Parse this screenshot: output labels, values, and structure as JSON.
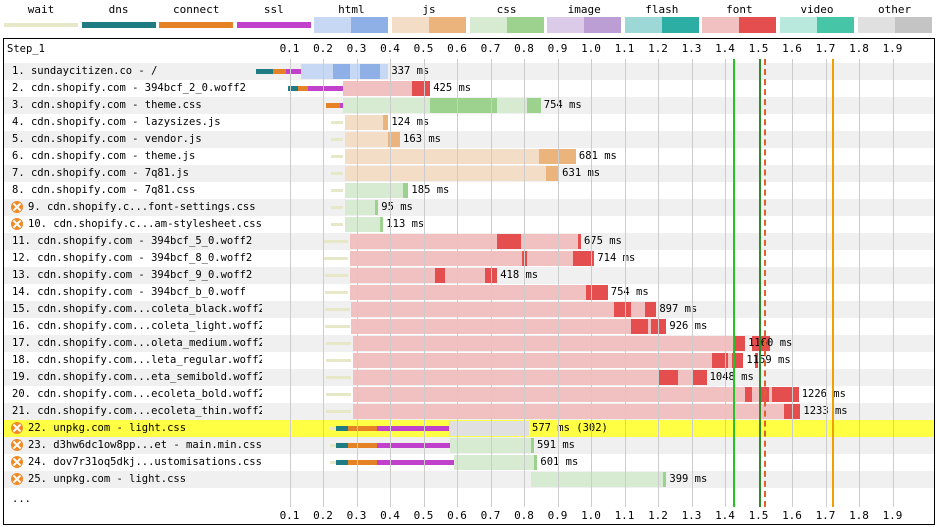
{
  "legend": [
    {
      "label": "wait",
      "light": "#ffffff",
      "dark": "#e6e8c8",
      "split": false
    },
    {
      "label": "dns",
      "light": "#1f7c83",
      "dark": "#1f7c83",
      "split": false
    },
    {
      "label": "connect",
      "light": "#e58226",
      "dark": "#e58226",
      "split": false
    },
    {
      "label": "ssl",
      "light": "#c141cd",
      "dark": "#c141cd",
      "split": false
    },
    {
      "label": "html",
      "light": "#c6d8f3",
      "dark": "#8eb0e6",
      "split": true
    },
    {
      "label": "js",
      "light": "#f3ddc6",
      "dark": "#ebb47d",
      "split": true
    },
    {
      "label": "css",
      "light": "#d7ebd3",
      "dark": "#9dd28e",
      "split": true
    },
    {
      "label": "image",
      "light": "#dbcbe8",
      "dark": "#bc9ed4",
      "split": true
    },
    {
      "label": "flash",
      "light": "#9ed8d6",
      "dark": "#2daea5",
      "split": true
    },
    {
      "label": "font",
      "light": "#f1c1c1",
      "dark": "#e54e4e",
      "split": true
    },
    {
      "label": "video",
      "light": "#b9e8dc",
      "dark": "#47c5a7",
      "split": true
    },
    {
      "label": "other",
      "light": "#e0e0e0",
      "dark": "#c4c4c4",
      "split": true
    }
  ],
  "step_title": "Step_1",
  "timeline": {
    "max": 1.95,
    "ticks": [
      "0.1",
      "0.2",
      "0.3",
      "0.4",
      "0.5",
      "0.6",
      "0.7",
      "0.8",
      "0.9",
      "1.0",
      "1.1",
      "1.2",
      "1.3",
      "1.4",
      "1.5",
      "1.6",
      "1.7",
      "1.8",
      "1.9"
    ]
  },
  "events": [
    {
      "name": "start_render",
      "time": 1.425,
      "color": "#28c228"
    },
    {
      "name": "dom_content_loaded",
      "time": 1.5,
      "color": "#2e8b2e"
    },
    {
      "name": "dom_interactive",
      "time": 1.515,
      "color": "#e0622a"
    },
    {
      "name": "on_load",
      "time": 1.72,
      "color": "#f0a000"
    }
  ],
  "requests": [
    {
      "label": "1. sundaycitizen.co - /",
      "warn": false,
      "hl": false,
      "type": "html",
      "wait": [
        0,
        0
      ],
      "dns": [
        0,
        0.05
      ],
      "connect": [
        0.05,
        0.09
      ],
      "ssl": [
        0.09,
        0.135
      ],
      "start": 0.135,
      "end": 0.395,
      "darks": [
        [
          0.23,
          0.28
        ],
        [
          0.31,
          0.37
        ]
      ],
      "duration": "337 ms"
    },
    {
      "label": "2. cdn.shopify.com - 394bcf_2_0.woff2",
      "warn": false,
      "hl": false,
      "type": "font",
      "wait": [
        0,
        0
      ],
      "dns": [
        0.095,
        0.125
      ],
      "connect": [
        0.125,
        0.155
      ],
      "ssl": [
        0.155,
        0.26
      ],
      "start": 0.26,
      "end": 0.52,
      "darks": [
        [
          0.465,
          0.52
        ]
      ],
      "duration": "425 ms"
    },
    {
      "label": "3. cdn.shopify.com - theme.css",
      "warn": false,
      "hl": false,
      "type": "css",
      "wait": [
        0,
        0
      ],
      "dns": [
        0,
        0
      ],
      "connect": [
        0.21,
        0.25
      ],
      "ssl": [
        0.25,
        0.26
      ],
      "start": 0.26,
      "end": 0.85,
      "darks": [
        [
          0.52,
          0.72
        ],
        [
          0.81,
          0.85
        ]
      ],
      "duration": "754 ms"
    },
    {
      "label": "4. cdn.shopify.com - lazysizes.js",
      "warn": false,
      "hl": false,
      "type": "js",
      "wait": [
        0.225,
        0.26
      ],
      "dns": [
        0,
        0
      ],
      "connect": [
        0,
        0
      ],
      "ssl": [
        0,
        0
      ],
      "start": 0.265,
      "end": 0.395,
      "darks": [
        [
          0.38,
          0.395
        ]
      ],
      "duration": "124 ms"
    },
    {
      "label": "5. cdn.shopify.com - vendor.js",
      "warn": false,
      "hl": false,
      "type": "js",
      "wait": [
        0.225,
        0.26
      ],
      "dns": [
        0,
        0
      ],
      "connect": [
        0,
        0
      ],
      "ssl": [
        0,
        0
      ],
      "start": 0.265,
      "end": 0.43,
      "darks": [
        [
          0.395,
          0.43
        ]
      ],
      "duration": "163 ms"
    },
    {
      "label": "6. cdn.shopify.com - theme.js",
      "warn": false,
      "hl": false,
      "type": "js",
      "wait": [
        0.225,
        0.26
      ],
      "dns": [
        0,
        0
      ],
      "connect": [
        0,
        0
      ],
      "ssl": [
        0,
        0
      ],
      "start": 0.265,
      "end": 0.955,
      "darks": [
        [
          0.845,
          0.955
        ]
      ],
      "duration": "681 ms"
    },
    {
      "label": "7. cdn.shopify.com - 7q81.js",
      "warn": false,
      "hl": false,
      "type": "js",
      "wait": [
        0.225,
        0.26
      ],
      "dns": [
        0,
        0
      ],
      "connect": [
        0,
        0
      ],
      "ssl": [
        0,
        0
      ],
      "start": 0.265,
      "end": 0.905,
      "darks": [
        [
          0.865,
          0.905
        ]
      ],
      "duration": "631 ms"
    },
    {
      "label": "8. cdn.shopify.com - 7q81.css",
      "warn": false,
      "hl": false,
      "type": "css",
      "wait": [
        0.225,
        0.26
      ],
      "dns": [
        0,
        0
      ],
      "connect": [
        0,
        0
      ],
      "ssl": [
        0,
        0
      ],
      "start": 0.265,
      "end": 0.455,
      "darks": [
        [
          0.44,
          0.455
        ]
      ],
      "duration": "185 ms"
    },
    {
      "label": "9. cdn.shopify.c...font-settings.css",
      "warn": true,
      "hl": false,
      "type": "css",
      "wait": [
        0.225,
        0.26
      ],
      "dns": [
        0,
        0
      ],
      "connect": [
        0,
        0
      ],
      "ssl": [
        0,
        0
      ],
      "start": 0.265,
      "end": 0.365,
      "darks": [
        [
          0.355,
          0.365
        ]
      ],
      "duration": "95 ms"
    },
    {
      "label": "10. cdn.shopify.c...am-stylesheet.css",
      "warn": true,
      "hl": false,
      "type": "css",
      "wait": [
        0.225,
        0.26
      ],
      "dns": [
        0,
        0
      ],
      "connect": [
        0,
        0
      ],
      "ssl": [
        0,
        0
      ],
      "start": 0.265,
      "end": 0.38,
      "darks": [
        [
          0.37,
          0.38
        ]
      ],
      "duration": "113 ms"
    },
    {
      "label": "11. cdn.shopify.com - 394bcf_5_0.woff2",
      "warn": false,
      "hl": false,
      "type": "font",
      "wait": [
        0.2,
        0.275
      ],
      "dns": [
        0,
        0
      ],
      "connect": [
        0,
        0
      ],
      "ssl": [
        0,
        0
      ],
      "start": 0.28,
      "end": 0.97,
      "darks": [
        [
          0.72,
          0.79
        ],
        [
          0.96,
          0.97
        ]
      ],
      "duration": "675 ms"
    },
    {
      "label": "12. cdn.shopify.com - 394bcf_8_0.woff2",
      "warn": false,
      "hl": false,
      "type": "font",
      "wait": [
        0.2,
        0.275
      ],
      "dns": [
        0,
        0
      ],
      "connect": [
        0,
        0
      ],
      "ssl": [
        0,
        0
      ],
      "start": 0.28,
      "end": 1.01,
      "darks": [
        [
          0.795,
          0.81
        ],
        [
          0.945,
          1.01
        ]
      ],
      "duration": "714 ms"
    },
    {
      "label": "13. cdn.shopify.com - 394bcf_9_0.woff2",
      "warn": false,
      "hl": false,
      "type": "font",
      "wait": [
        0.205,
        0.275
      ],
      "dns": [
        0,
        0
      ],
      "connect": [
        0,
        0
      ],
      "ssl": [
        0,
        0
      ],
      "start": 0.28,
      "end": 0.72,
      "darks": [
        [
          0.535,
          0.565
        ],
        [
          0.685,
          0.72
        ]
      ],
      "duration": "418 ms"
    },
    {
      "label": "14. cdn.shopify.com - 394bcf_b_0.woff",
      "warn": false,
      "hl": false,
      "type": "font",
      "wait": [
        0.205,
        0.275
      ],
      "dns": [
        0,
        0
      ],
      "connect": [
        0,
        0
      ],
      "ssl": [
        0,
        0
      ],
      "start": 0.28,
      "end": 1.05,
      "darks": [
        [
          0.985,
          1.05
        ]
      ],
      "duration": "754 ms"
    },
    {
      "label": "15. cdn.shopify.com...coleta_black.woff2",
      "warn": false,
      "hl": false,
      "type": "font",
      "wait": [
        0.205,
        0.28
      ],
      "dns": [
        0,
        0
      ],
      "connect": [
        0,
        0
      ],
      "ssl": [
        0,
        0
      ],
      "start": 0.285,
      "end": 1.195,
      "darks": [
        [
          1.07,
          1.12
        ],
        [
          1.16,
          1.195
        ]
      ],
      "duration": "897 ms"
    },
    {
      "label": "16. cdn.shopify.com...coleta_light.woff2",
      "warn": false,
      "hl": false,
      "type": "font",
      "wait": [
        0.205,
        0.28
      ],
      "dns": [
        0,
        0
      ],
      "connect": [
        0,
        0
      ],
      "ssl": [
        0,
        0
      ],
      "start": 0.285,
      "end": 1.225,
      "darks": [
        [
          1.12,
          1.17
        ],
        [
          1.18,
          1.225
        ]
      ],
      "duration": "926 ms"
    },
    {
      "label": "17. cdn.shopify.com...oleta_medium.woff2",
      "warn": false,
      "hl": false,
      "type": "font",
      "wait": [
        0.21,
        0.285
      ],
      "dns": [
        0,
        0
      ],
      "connect": [
        0,
        0
      ],
      "ssl": [
        0,
        0
      ],
      "start": 0.29,
      "end": 1.46,
      "darks": [
        [
          1.43,
          1.46
        ],
        [
          1.48,
          1.52
        ],
        [
          1.52,
          1.535
        ]
      ],
      "duration": "1160 ms"
    },
    {
      "label": "18. cdn.shopify.com...leta_regular.woff2",
      "warn": false,
      "hl": false,
      "type": "font",
      "wait": [
        0.21,
        0.285
      ],
      "dns": [
        0,
        0
      ],
      "connect": [
        0,
        0
      ],
      "ssl": [
        0,
        0
      ],
      "start": 0.29,
      "end": 1.455,
      "darks": [
        [
          1.36,
          1.41
        ],
        [
          1.42,
          1.455
        ],
        [
          1.49,
          1.5
        ]
      ],
      "duration": "1159 ms"
    },
    {
      "label": "19. cdn.shopify.com...eta_semibold.woff2",
      "warn": false,
      "hl": false,
      "type": "font",
      "wait": [
        0.21,
        0.285
      ],
      "dns": [
        0,
        0
      ],
      "connect": [
        0,
        0
      ],
      "ssl": [
        0,
        0
      ],
      "start": 0.29,
      "end": 1.345,
      "darks": [
        [
          1.2,
          1.26
        ],
        [
          1.3,
          1.345
        ]
      ],
      "duration": "1048 ms"
    },
    {
      "label": "20. cdn.shopify.com...ecoleta_bold.woff2",
      "warn": false,
      "hl": false,
      "type": "font",
      "wait": [
        0.21,
        0.285
      ],
      "dns": [
        0,
        0
      ],
      "connect": [
        0,
        0
      ],
      "ssl": [
        0,
        0
      ],
      "start": 0.29,
      "end": 1.62,
      "darks": [
        [
          1.46,
          1.48
        ],
        [
          1.5,
          1.53
        ],
        [
          1.54,
          1.62
        ]
      ],
      "duration": "1226 ms"
    },
    {
      "label": "21. cdn.shopify.com...ecoleta_thin.woff2",
      "warn": false,
      "hl": false,
      "type": "font",
      "wait": [
        0.21,
        0.285
      ],
      "dns": [
        0,
        0
      ],
      "connect": [
        0,
        0
      ],
      "ssl": [
        0,
        0
      ],
      "start": 0.29,
      "end": 1.625,
      "darks": [
        [
          1.575,
          1.625
        ]
      ],
      "duration": "1233 ms"
    },
    {
      "label": "22. unpkg.com - light.css",
      "warn": true,
      "hl": true,
      "type": "other",
      "wait": [
        0.22,
        0.24
      ],
      "dns": [
        0.24,
        0.275
      ],
      "connect": [
        0.275,
        0.36
      ],
      "ssl": [
        0.36,
        0.575
      ],
      "start": 0.575,
      "end": 0.815,
      "darks": [],
      "duration": "577 ms (302)"
    },
    {
      "label": "23. d3hw6dc1ow8pp...et - main.min.css",
      "warn": true,
      "hl": false,
      "type": "css",
      "wait": [
        0.22,
        0.24
      ],
      "dns": [
        0.24,
        0.275
      ],
      "connect": [
        0.275,
        0.36
      ],
      "ssl": [
        0.36,
        0.58
      ],
      "start": 0.58,
      "end": 0.83,
      "darks": [
        [
          0.82,
          0.83
        ]
      ],
      "duration": "591 ms"
    },
    {
      "label": "24. dov7r31oq5dkj...ustomisations.css",
      "warn": true,
      "hl": false,
      "type": "css",
      "wait": [
        0.22,
        0.24
      ],
      "dns": [
        0.24,
        0.275
      ],
      "connect": [
        0.275,
        0.36
      ],
      "ssl": [
        0.36,
        0.59
      ],
      "start": 0.59,
      "end": 0.84,
      "darks": [
        [
          0.83,
          0.84
        ]
      ],
      "duration": "601 ms"
    },
    {
      "label": "25. unpkg.com - light.css",
      "warn": true,
      "hl": false,
      "type": "css",
      "wait": [
        0,
        0
      ],
      "dns": [
        0,
        0
      ],
      "connect": [
        0,
        0
      ],
      "ssl": [
        0,
        0
      ],
      "start": 0.82,
      "end": 1.225,
      "darks": [
        [
          1.215,
          1.225
        ]
      ],
      "duration": "399 ms"
    }
  ],
  "more_label": "..."
}
